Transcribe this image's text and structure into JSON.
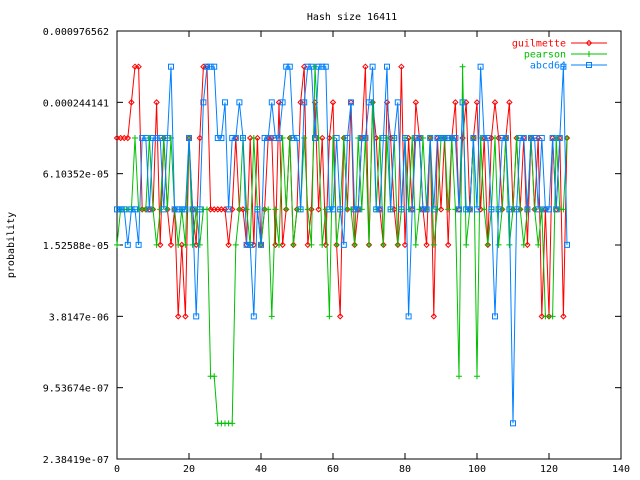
{
  "chart_data": {
    "type": "line",
    "title": "Hash size 16411",
    "xlabel": "",
    "ylabel": "probability",
    "xlim": [
      0,
      140
    ],
    "ylim": [
      2.38419e-07,
      0.000976562
    ],
    "y_scale": "log",
    "x_ticks": [
      0,
      20,
      40,
      60,
      80,
      100,
      120,
      140
    ],
    "y_ticks": [
      {
        "value": 0.000976562,
        "label": "0.000976562"
      },
      {
        "value": 0.000244141,
        "label": "0.000244141"
      },
      {
        "value": 6.10352e-05,
        "label": "6.10352e-05"
      },
      {
        "value": 1.52588e-05,
        "label": "1.52588e-05"
      },
      {
        "value": 3.8147e-06,
        "label": "3.8147e-06"
      },
      {
        "value": 9.53674e-07,
        "label": "9.53674e-07"
      },
      {
        "value": 2.38419e-07,
        "label": "2.38419e-07"
      }
    ],
    "x_tick_labels": [
      "0",
      "20",
      "40",
      "60",
      "80",
      "100",
      "120",
      "140"
    ],
    "grid": false,
    "legend_position": "top-right",
    "x": [
      0,
      1,
      2,
      3,
      4,
      5,
      6,
      7,
      8,
      9,
      10,
      11,
      12,
      13,
      14,
      15,
      16,
      17,
      18,
      19,
      20,
      21,
      22,
      23,
      24,
      25,
      26,
      27,
      28,
      29,
      30,
      31,
      32,
      33,
      34,
      35,
      36,
      37,
      38,
      39,
      40,
      41,
      42,
      43,
      44,
      45,
      46,
      47,
      48,
      49,
      50,
      51,
      52,
      53,
      54,
      55,
      56,
      57,
      58,
      59,
      60,
      61,
      62,
      63,
      64,
      65,
      66,
      67,
      68,
      69,
      70,
      71,
      72,
      73,
      74,
      75,
      76,
      77,
      78,
      79,
      80,
      81,
      82,
      83,
      84,
      85,
      86,
      87,
      88,
      89,
      90,
      91,
      92,
      93,
      94,
      95,
      96,
      97,
      98,
      99,
      100,
      101,
      102,
      103,
      104,
      105,
      106,
      107,
      108,
      109,
      110,
      111,
      112,
      113,
      114,
      115,
      116,
      117,
      118,
      119,
      120,
      121,
      122,
      123,
      124,
      125
    ],
    "series": [
      {
        "name": "guilmette",
        "color": "#ff0000",
        "marker": "diamond",
        "values": [
          0.000122,
          0.000122,
          0.000122,
          0.000122,
          0.000244,
          0.000488,
          0.000488,
          3.05e-05,
          3.05e-05,
          3.05e-05,
          3.05e-05,
          0.000244,
          1.53e-05,
          0.000122,
          3.05e-05,
          1.53e-05,
          3.05e-05,
          3.81e-06,
          1.53e-05,
          3.81e-06,
          0.000122,
          3.05e-05,
          1.53e-05,
          0.000122,
          0.000488,
          0.000488,
          3.05e-05,
          3.05e-05,
          3.05e-05,
          3.05e-05,
          3.05e-05,
          1.53e-05,
          3.05e-05,
          0.000122,
          3.05e-05,
          3.05e-05,
          1.53e-05,
          0.000122,
          1.53e-05,
          0.000122,
          1.53e-05,
          3.05e-05,
          0.000122,
          0.000122,
          1.53e-05,
          0.000244,
          1.53e-05,
          3.05e-05,
          0.000122,
          1.53e-05,
          3.05e-05,
          0.000244,
          0.000488,
          1.53e-05,
          3.05e-05,
          0.000244,
          3.05e-05,
          0.000122,
          1.53e-05,
          0.000122,
          0.000244,
          1.53e-05,
          3.81e-06,
          0.000122,
          3.05e-05,
          0.000244,
          1.53e-05,
          3.05e-05,
          0.000122,
          0.000488,
          1.53e-05,
          0.000244,
          0.000122,
          3.05e-05,
          1.53e-05,
          0.000244,
          0.000122,
          3.05e-05,
          1.53e-05,
          0.000488,
          1.53e-05,
          0.000122,
          3.05e-05,
          0.000244,
          0.000122,
          3.05e-05,
          1.53e-05,
          0.000122,
          3.81e-06,
          0.000122,
          3.05e-05,
          0.000122,
          1.53e-05,
          0.000122,
          0.000244,
          3.05e-05,
          0.000122,
          0.000244,
          3.05e-05,
          0.000122,
          0.000244,
          3.05e-05,
          0.000122,
          1.53e-05,
          0.000122,
          0.000244,
          0.000122,
          3.05e-05,
          0.000122,
          0.000244,
          3.05e-05,
          0.000122,
          3.05e-05,
          0.000122,
          1.53e-05,
          0.000122,
          3.05e-05,
          0.000122,
          3.81e-06,
          3.05e-05,
          3.81e-06,
          0.000122,
          3.05e-05,
          0.000122,
          3.81e-06,
          0.000122
        ]
      },
      {
        "name": "pearson",
        "color": "#00c000",
        "marker": "plus",
        "values": [
          1.53e-05,
          3.05e-05,
          3.05e-05,
          3.05e-05,
          3.05e-05,
          0.000122,
          3.05e-05,
          3.05e-05,
          3.05e-05,
          0.000122,
          3.05e-05,
          1.53e-05,
          3.05e-05,
          0.000122,
          3.05e-05,
          0.000122,
          3.05e-05,
          1.53e-05,
          3.05e-05,
          1.53e-05,
          0.000122,
          1.53e-05,
          3.05e-05,
          1.53e-05,
          3.05e-05,
          3.05e-05,
          1.19e-06,
          1.19e-06,
          4.77e-07,
          4.77e-07,
          4.77e-07,
          4.77e-07,
          4.77e-07,
          1.53e-05,
          3.05e-05,
          0.000122,
          3.05e-05,
          1.53e-05,
          0.000122,
          3.05e-05,
          1.53e-05,
          3.05e-05,
          3.05e-05,
          3.81e-06,
          3.05e-05,
          1.53e-05,
          0.000122,
          3.05e-05,
          0.000122,
          1.53e-05,
          3.05e-05,
          3.05e-05,
          0.000122,
          3.05e-05,
          1.53e-05,
          0.000488,
          0.000122,
          1.53e-05,
          3.05e-05,
          3.81e-06,
          0.000122,
          1.53e-05,
          3.05e-05,
          0.000122,
          3.05e-05,
          3.05e-05,
          1.53e-05,
          0.000122,
          3.05e-05,
          0.000122,
          1.53e-05,
          0.000244,
          3.05e-05,
          0.000122,
          1.53e-05,
          0.000122,
          3.05e-05,
          0.000122,
          1.53e-05,
          3.05e-05,
          0.000122,
          3.05e-05,
          0.000122,
          1.53e-05,
          3.05e-05,
          0.000122,
          3.05e-05,
          0.000122,
          1.53e-05,
          3.05e-05,
          0.000122,
          0.000122,
          3.05e-05,
          0.000122,
          3.05e-05,
          1.19e-06,
          0.000488,
          1.53e-05,
          3.05e-05,
          0.000122,
          1.19e-06,
          0.000122,
          3.05e-05,
          1.53e-05,
          3.05e-05,
          0.000122,
          1.53e-05,
          3.05e-05,
          0.000122,
          1.53e-05,
          3.05e-05,
          0.000122,
          3.05e-05,
          1.53e-05,
          3.05e-05,
          0.000122,
          3.05e-05,
          1.53e-05,
          3.05e-05,
          3.81e-06,
          3.81e-06,
          3.81e-06,
          0.000122,
          3.05e-05,
          3.05e-05,
          0.000122
        ]
      },
      {
        "name": "abcd64",
        "color": "#0080ff",
        "marker": "square",
        "values": [
          3.05e-05,
          3.05e-05,
          3.05e-05,
          1.53e-05,
          3.05e-05,
          3.05e-05,
          1.53e-05,
          0.000122,
          0.000122,
          3.05e-05,
          0.000122,
          0.000122,
          0.000122,
          3.05e-05,
          0.000122,
          0.000488,
          3.05e-05,
          3.05e-05,
          3.05e-05,
          3.05e-05,
          0.000122,
          3.05e-05,
          3.81e-06,
          3.05e-05,
          0.000244,
          0.000488,
          0.000488,
          0.000488,
          0.000122,
          0.000122,
          0.000244,
          3.05e-05,
          0.000122,
          0.000122,
          0.000244,
          0.000122,
          1.53e-05,
          1.53e-05,
          3.81e-06,
          3.05e-05,
          1.53e-05,
          0.000122,
          0.000122,
          0.000244,
          0.000122,
          0.000122,
          0.000244,
          0.000488,
          0.000488,
          0.000122,
          0.000122,
          3.05e-05,
          0.000244,
          0.000488,
          0.000488,
          0.000122,
          0.000488,
          0.000488,
          0.000488,
          3.05e-05,
          3.05e-05,
          0.000122,
          3.05e-05,
          1.53e-05,
          0.000122,
          0.000244,
          3.05e-05,
          3.05e-05,
          0.000122,
          0.000122,
          0.000244,
          0.000488,
          3.05e-05,
          3.05e-05,
          0.000122,
          0.000488,
          3.05e-05,
          0.000122,
          0.000244,
          3.05e-05,
          0.000122,
          3.81e-06,
          3.05e-05,
          0.000122,
          0.000122,
          3.05e-05,
          3.05e-05,
          0.000122,
          3.05e-05,
          0.000122,
          0.000122,
          0.000122,
          0.000122,
          0.000122,
          0.000122,
          3.05e-05,
          0.000244,
          3.05e-05,
          3.05e-05,
          0.000122,
          3.05e-05,
          0.000488,
          0.000122,
          0.000122,
          3.05e-05,
          3.81e-06,
          3.05e-05,
          0.000122,
          0.000122,
          3.05e-05,
          4.77e-07,
          3.05e-05,
          0.000122,
          0.000122,
          3.05e-05,
          0.000122,
          0.000122,
          3.05e-05,
          0.000122,
          3.05e-05,
          3.05e-05,
          0.000122,
          3.05e-05,
          0.000122,
          0.000488,
          1.53e-05
        ]
      }
    ]
  }
}
